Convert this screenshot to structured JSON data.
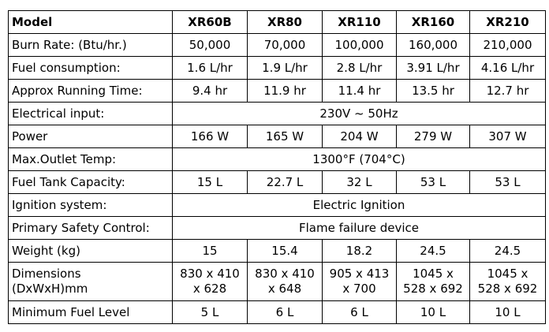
{
  "table": {
    "header": [
      "Model",
      "XR60B",
      "XR80",
      "XR110",
      "XR160",
      "XR210"
    ],
    "rows": [
      {
        "label": "Burn Rate: (Btu/hr.)",
        "cells": [
          "50,000",
          "70,000",
          "100,000",
          "160,000",
          "210,000"
        ]
      },
      {
        "label": "Fuel consumption:",
        "cells": [
          "1.6 L/hr",
          "1.9 L/hr",
          "2.8 L/hr",
          "3.91 L/hr",
          "4.16 L/hr"
        ]
      },
      {
        "label": "Approx Running Time:",
        "cells": [
          "9.4 hr",
          "11.9 hr",
          "11.4 hr",
          "13.5 hr",
          "12.7 hr"
        ]
      },
      {
        "label": "Electrical input:",
        "cells": [
          "230V ~ 50Hz"
        ]
      },
      {
        "label": "Power",
        "cells": [
          "166 W",
          "165 W",
          "204 W",
          "279 W",
          "307 W"
        ]
      },
      {
        "label": "Max.Outlet Temp:",
        "cells": [
          "1300°F (704°C)"
        ]
      },
      {
        "label": "Fuel Tank Capacity:",
        "cells": [
          "15 L",
          "22.7 L",
          "32 L",
          "53 L",
          "53 L"
        ]
      },
      {
        "label": "Ignition system:",
        "cells": [
          "Electric Ignition"
        ]
      },
      {
        "label": "Primary Safety Control:",
        "cells": [
          "Flame failure device"
        ]
      },
      {
        "label": "Weight (kg)",
        "cells": [
          "15",
          "15.4",
          "18.2",
          "24.5",
          "24.5"
        ]
      },
      {
        "label": "Dimensions\n(DxWxH)mm",
        "cells": [
          "830 x 410\nx 628",
          "830 x 410\nx 648",
          "905 x 413\nx 700",
          "1045 x\n528 x 692",
          "1045 x\n528 x 692"
        ]
      },
      {
        "label": "Minimum Fuel Level",
        "cells": [
          "5 L",
          "6 L",
          "6 L",
          "10 L",
          "10 L"
        ]
      }
    ]
  }
}
